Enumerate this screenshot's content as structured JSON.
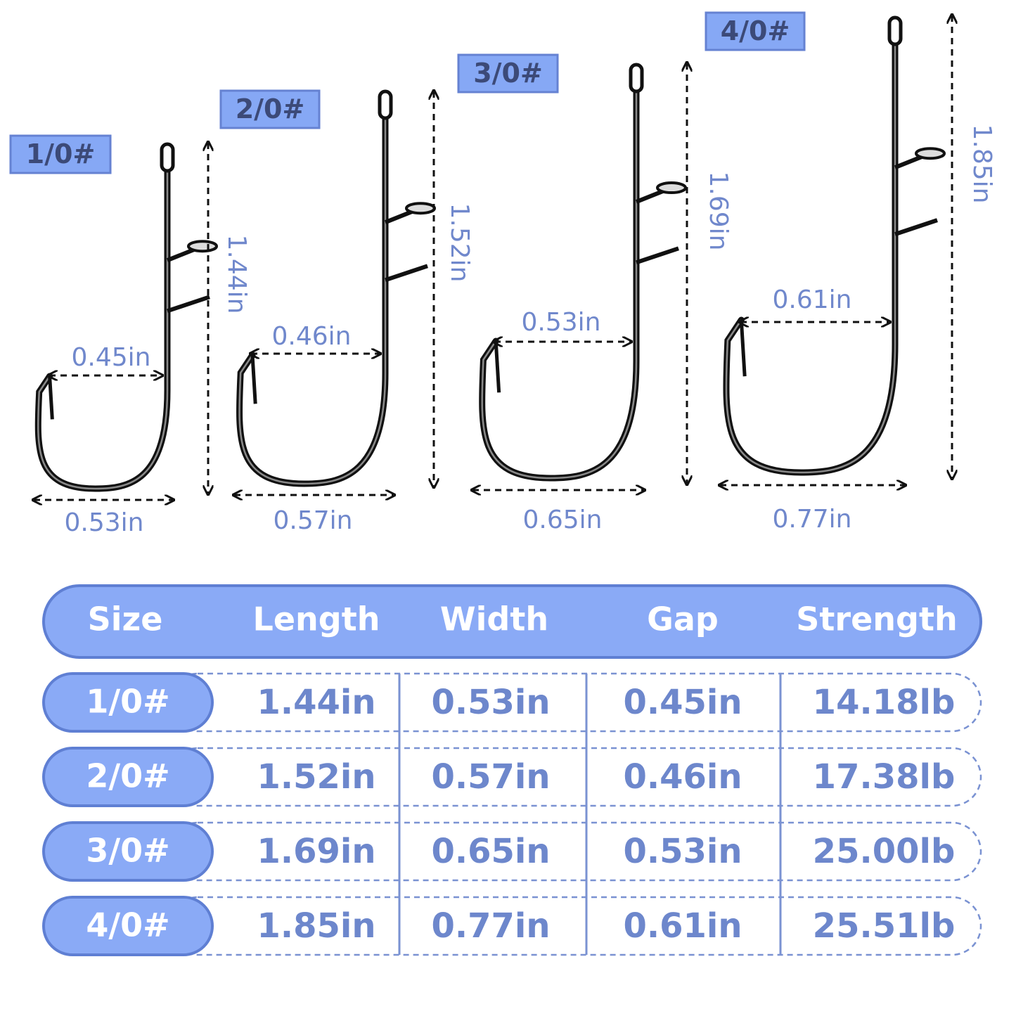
{
  "hooks": [
    {
      "size": "1/0#",
      "length": "1.44in",
      "width": "0.53in",
      "gap": "0.45in"
    },
    {
      "size": "2/0#",
      "length": "1.52in",
      "width": "0.57in",
      "gap": "0.46in"
    },
    {
      "size": "3/0#",
      "length": "1.69in",
      "width": "0.65in",
      "gap": "0.53in"
    },
    {
      "size": "4/0#",
      "length": "1.85in",
      "width": "0.77in",
      "gap": "0.61in"
    }
  ],
  "table": {
    "headers": [
      "Size",
      "Length",
      "Width",
      "Gap",
      "Strength"
    ],
    "rows": [
      [
        "1/0#",
        "1.44in",
        "0.53in",
        "0.45in",
        "14.18lb"
      ],
      [
        "2/0#",
        "1.52in",
        "0.57in",
        "0.46in",
        "17.38lb"
      ],
      [
        "3/0#",
        "1.69in",
        "0.65in",
        "0.53in",
        "25.00lb"
      ],
      [
        "4/0#",
        "1.85in",
        "0.77in",
        "0.61in",
        "25.51lb"
      ]
    ]
  }
}
